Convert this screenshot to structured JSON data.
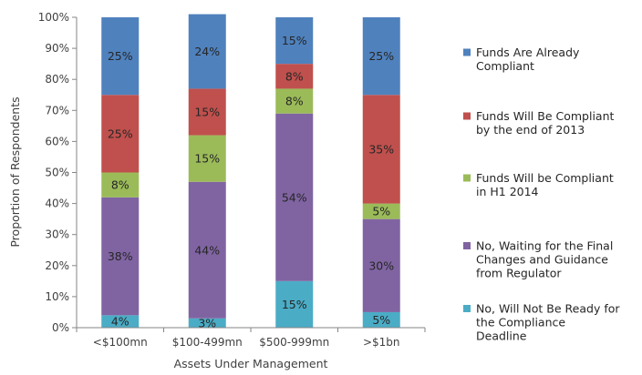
{
  "chart_data": {
    "type": "bar",
    "stacked": true,
    "xlabel": "Assets Under Management",
    "ylabel": "Proportion of Respondents",
    "ylim": [
      0,
      100
    ],
    "y_ticks": [
      "0%",
      "10%",
      "20%",
      "30%",
      "40%",
      "50%",
      "60%",
      "70%",
      "80%",
      "90%",
      "100%"
    ],
    "grid": false,
    "legend_position": "right",
    "categories": [
      "<$100mn",
      "$100-499mn",
      "$500-999mn",
      ">$1bn"
    ],
    "series": [
      {
        "name": "No, Will Not Be Ready for the Compliance Deadline",
        "legend_lines": [
          "No, Will Not Be Ready for",
          "the Compliance",
          "Deadline"
        ],
        "color": "#4BACC6",
        "values": [
          4,
          3,
          15,
          5
        ],
        "labels": [
          "4%",
          "3%",
          "15%",
          "5%"
        ]
      },
      {
        "name": "No, Waiting for the Final Changes and Guidance from Regulator",
        "legend_lines": [
          "No, Waiting for the Final",
          "Changes and Guidance",
          "from Regulator"
        ],
        "color": "#8064A2",
        "values": [
          38,
          44,
          54,
          30
        ],
        "labels": [
          "38%",
          "44%",
          "54%",
          "30%"
        ]
      },
      {
        "name": "Funds Will be Compliant in H1 2014",
        "legend_lines": [
          "Funds Will be Compliant",
          "in H1 2014"
        ],
        "color": "#9BBB59",
        "values": [
          8,
          15,
          8,
          5
        ],
        "labels": [
          "8%",
          "15%",
          "8%",
          "5%"
        ]
      },
      {
        "name": "Funds Will Be Compliant by the end of 2013",
        "legend_lines": [
          "Funds Will Be Compliant",
          "by the end of 2013"
        ],
        "color": "#C0504D",
        "values": [
          25,
          15,
          8,
          35
        ],
        "labels": [
          "25%",
          "15%",
          "8%",
          "35%"
        ]
      },
      {
        "name": "Funds Are Already Compliant",
        "legend_lines": [
          "Funds Are Already",
          "Compliant"
        ],
        "color": "#4F81BD",
        "values": [
          25,
          24,
          15,
          25
        ],
        "labels": [
          "25%",
          "24%",
          "15%",
          "25%"
        ]
      }
    ],
    "legend_order": [
      4,
      3,
      2,
      1,
      0
    ]
  }
}
